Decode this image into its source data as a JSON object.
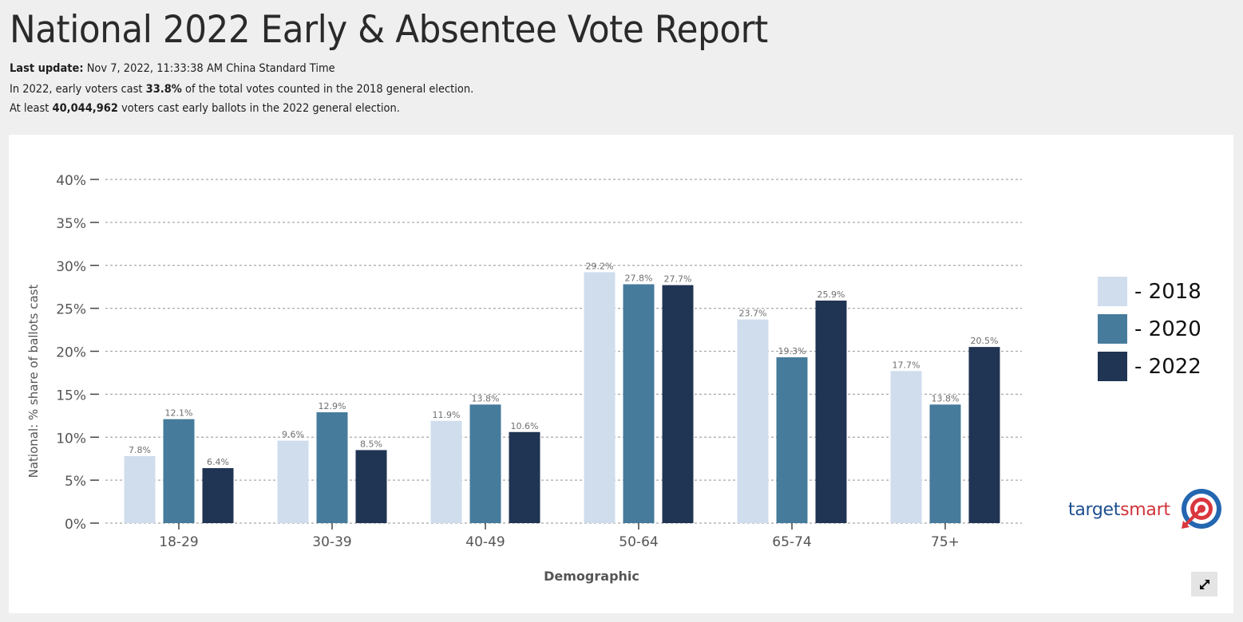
{
  "header": {
    "title": "National 2022 Early & Absentee Vote Report",
    "last_update_label": "Last update:",
    "last_update_value": "Nov 7, 2022, 11:33:38 AM China Standard Time",
    "line1_prefix": "In 2022, early voters cast",
    "line1_value": "33.8%",
    "line1_suffix": "of the total votes counted in the 2018 general election.",
    "line2_prefix": "At least",
    "line2_value": "40,044,962",
    "line2_suffix": "voters cast early ballots in the 2022 general election."
  },
  "chart_data": {
    "type": "bar",
    "xlabel": "Demographic",
    "ylabel": "National: % share of ballots cast",
    "ylim": [
      0,
      40
    ],
    "yticks": [
      0,
      5,
      10,
      15,
      20,
      25,
      30,
      35,
      40
    ],
    "ytick_labels": [
      "0%",
      "5%",
      "10%",
      "15%",
      "20%",
      "25%",
      "30%",
      "35%",
      "40%"
    ],
    "grid": true,
    "categories": [
      "18-29",
      "30-39",
      "40-49",
      "50-64",
      "65-74",
      "75+"
    ],
    "series": [
      {
        "name": "2018",
        "color": "#cfdded",
        "values": [
          7.8,
          9.6,
          11.9,
          29.2,
          23.7,
          17.7
        ],
        "labels": [
          "7.8%",
          "9.6%",
          "11.9%",
          "29.2%",
          "23.7%",
          "17.7%"
        ]
      },
      {
        "name": "2020",
        "color": "#467b9c",
        "values": [
          12.1,
          12.9,
          13.8,
          27.8,
          19.3,
          13.8
        ],
        "labels": [
          "12.1%",
          "12.9%",
          "13.8%",
          "27.8%",
          "19.3%",
          "13.8%"
        ]
      },
      {
        "name": "2022",
        "color": "#203453",
        "values": [
          6.4,
          8.5,
          10.6,
          27.7,
          25.9,
          20.5
        ],
        "labels": [
          "6.4%",
          "8.5%",
          "10.6%",
          "27.7%",
          "25.9%",
          "20.5%"
        ]
      }
    ],
    "legend": [
      {
        "label": "- 2018",
        "color": "#cfdded"
      },
      {
        "label": "- 2020",
        "color": "#467b9c"
      },
      {
        "label": "- 2022",
        "color": "#203453"
      }
    ],
    "legend_position": "right"
  },
  "logo": {
    "part1": "target",
    "part2": "smart",
    "icon": "target-bullseye-icon"
  },
  "expand": {
    "icon": "expand-arrows-icon"
  }
}
